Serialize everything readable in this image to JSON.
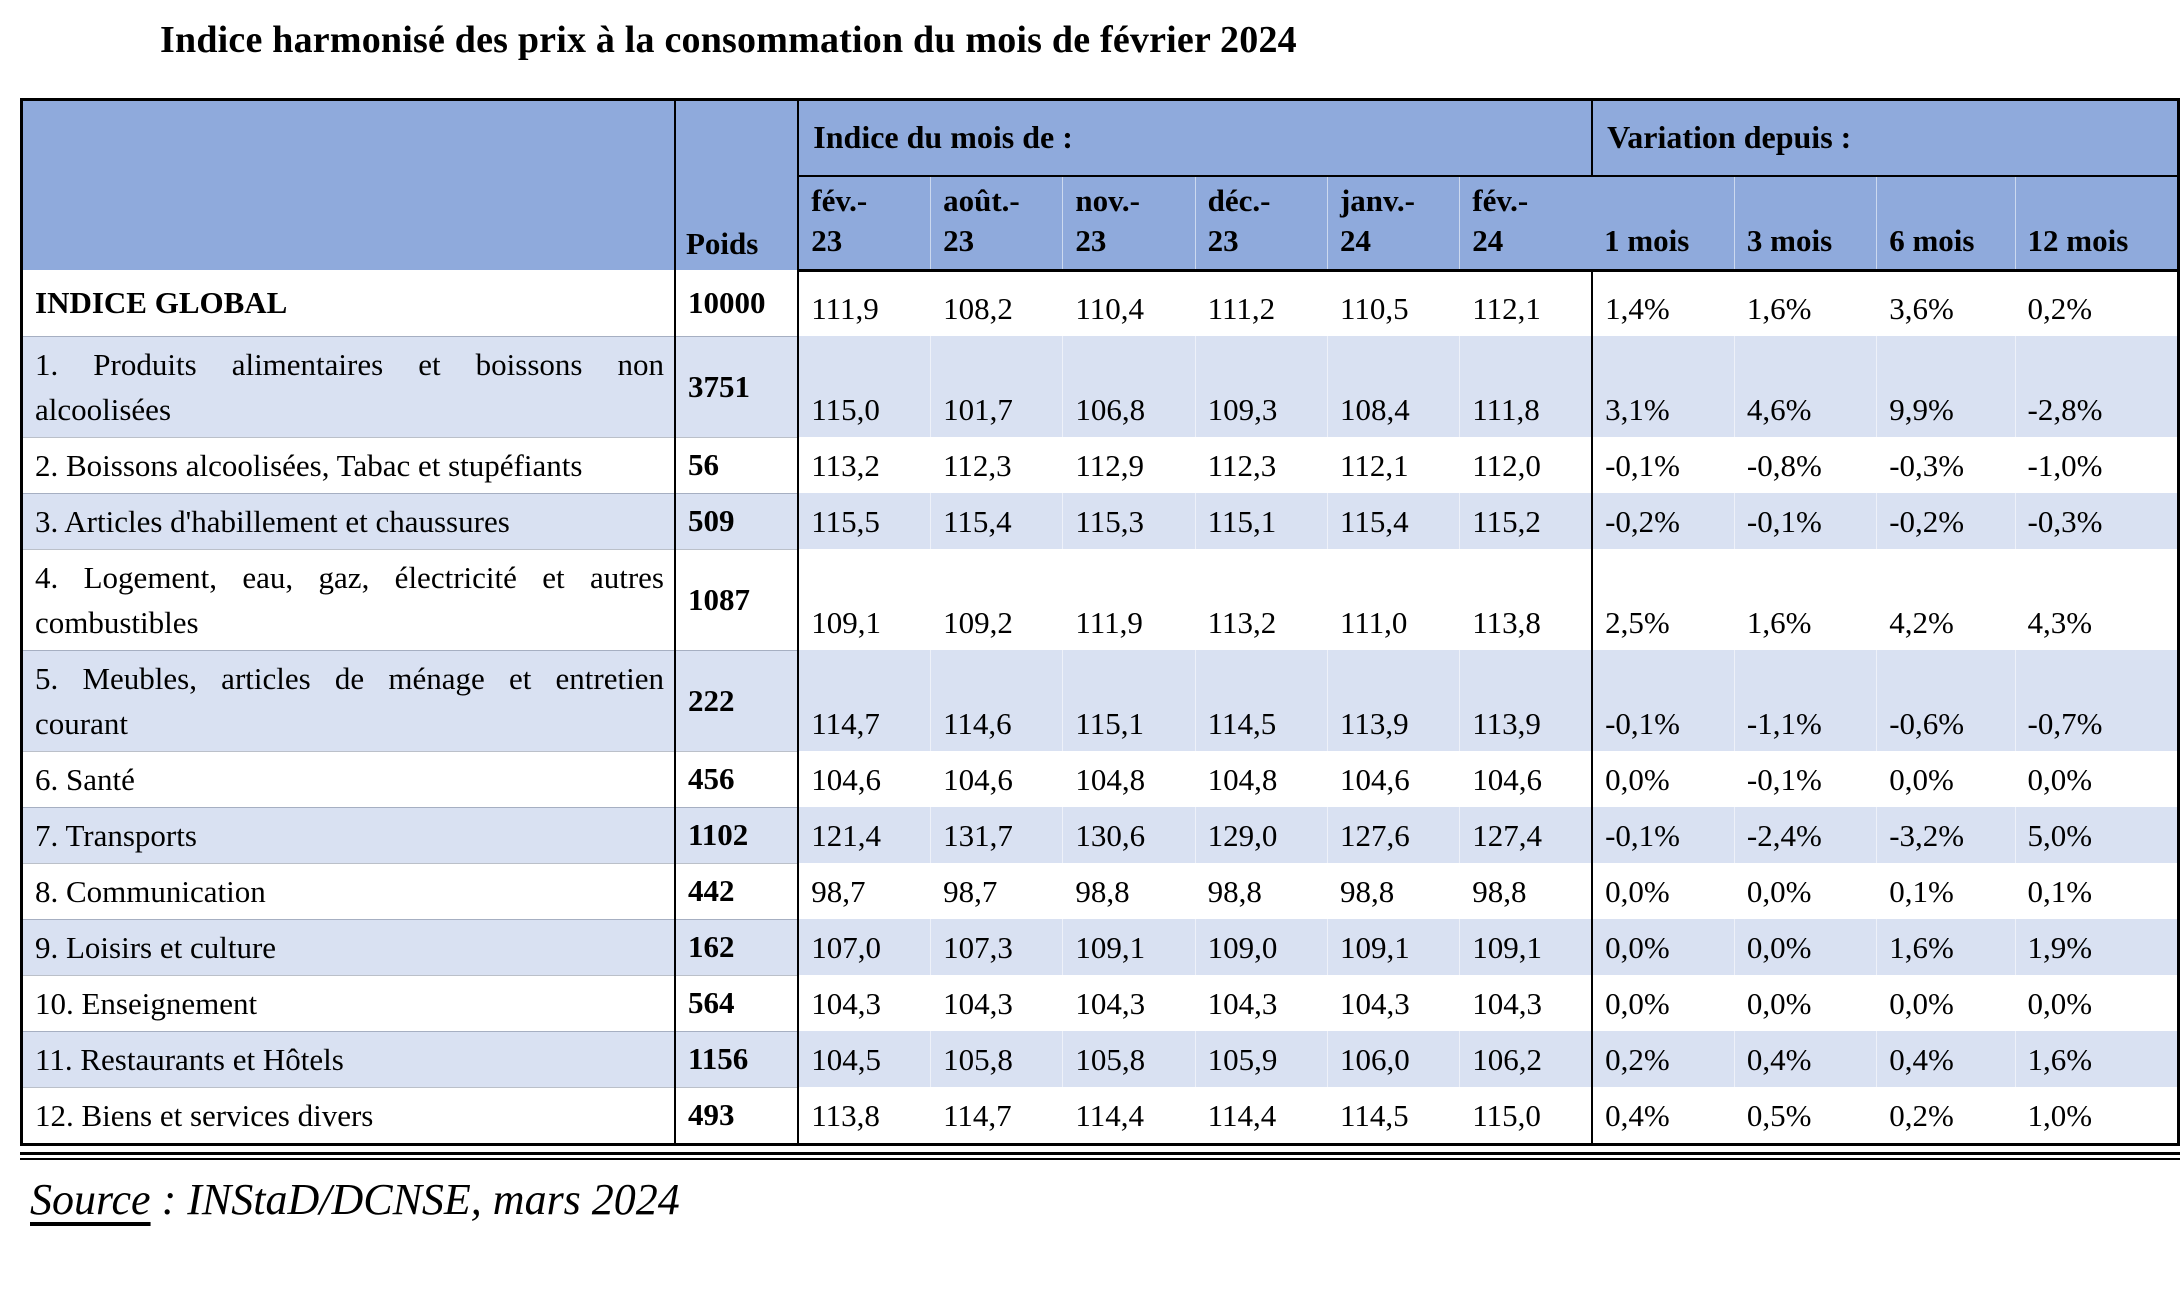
{
  "document": {
    "title": "Indice harmonisé des prix à la consommation du mois de février 2024",
    "source_prefix": "Source",
    "source_text": " : INStaD/DCNSE, mars 2024"
  },
  "colors": {
    "header_blue": "#8FAADC",
    "band_blue": "#D9E1F2",
    "border_black": "#000000"
  },
  "table": {
    "header": {
      "poids_label": "Poids",
      "indice_group_label": "Indice du mois de :",
      "variation_group_label": "Variation depuis :",
      "month_columns": [
        "fév.-\n23",
        "août.-\n23",
        "nov.-\n23",
        "déc.-\n23",
        "janv.-\n24",
        "fév.-\n24"
      ],
      "period_columns": [
        "1 mois",
        "3 mois",
        "6 mois",
        "12 mois"
      ]
    },
    "rows": [
      {
        "category": "INDICE GLOBAL",
        "poids": "10000",
        "indices": [
          "111,9",
          "108,2",
          "110,4",
          "111,2",
          "110,5",
          "112,1"
        ],
        "variations": [
          "1,4%",
          "1,6%",
          "3,6%",
          "0,2%"
        ]
      },
      {
        "category": "1. Produits alimentaires et boissons non alcoolisées",
        "poids": "3751",
        "indices": [
          "115,0",
          "101,7",
          "106,8",
          "109,3",
          "108,4",
          "111,8"
        ],
        "variations": [
          "3,1%",
          "4,6%",
          "9,9%",
          "-2,8%"
        ]
      },
      {
        "category": "2. Boissons alcoolisées, Tabac et stupéfiants",
        "poids": "56",
        "indices": [
          "113,2",
          "112,3",
          "112,9",
          "112,3",
          "112,1",
          "112,0"
        ],
        "variations": [
          "-0,1%",
          "-0,8%",
          "-0,3%",
          "-1,0%"
        ]
      },
      {
        "category": "3. Articles d'habillement et chaussures",
        "poids": "509",
        "indices": [
          "115,5",
          "115,4",
          "115,3",
          "115,1",
          "115,4",
          "115,2"
        ],
        "variations": [
          "-0,2%",
          "-0,1%",
          "-0,2%",
          "-0,3%"
        ]
      },
      {
        "category": "4. Logement, eau, gaz, électricité et autres combustibles",
        "poids": "1087",
        "indices": [
          "109,1",
          "109,2",
          "111,9",
          "113,2",
          "111,0",
          "113,8"
        ],
        "variations": [
          "2,5%",
          "1,6%",
          "4,2%",
          "4,3%"
        ]
      },
      {
        "category": "5. Meubles, articles de ménage et entretien courant",
        "poids": "222",
        "indices": [
          "114,7",
          "114,6",
          "115,1",
          "114,5",
          "113,9",
          "113,9"
        ],
        "variations": [
          "-0,1%",
          "-1,1%",
          "-0,6%",
          "-0,7%"
        ]
      },
      {
        "category": "6. Santé",
        "poids": "456",
        "indices": [
          "104,6",
          "104,6",
          "104,8",
          "104,8",
          "104,6",
          "104,6"
        ],
        "variations": [
          "0,0%",
          "-0,1%",
          "0,0%",
          "0,0%"
        ]
      },
      {
        "category": "7. Transports",
        "poids": "1102",
        "indices": [
          "121,4",
          "131,7",
          "130,6",
          "129,0",
          "127,6",
          "127,4"
        ],
        "variations": [
          "-0,1%",
          "-2,4%",
          "-3,2%",
          "5,0%"
        ]
      },
      {
        "category": "8. Communication",
        "poids": "442",
        "indices": [
          "98,7",
          "98,7",
          "98,8",
          "98,8",
          "98,8",
          "98,8"
        ],
        "variations": [
          "0,0%",
          "0,0%",
          "0,1%",
          "0,1%"
        ]
      },
      {
        "category": "9. Loisirs et culture",
        "poids": "162",
        "indices": [
          "107,0",
          "107,3",
          "109,1",
          "109,0",
          "109,1",
          "109,1"
        ],
        "variations": [
          "0,0%",
          "0,0%",
          "1,6%",
          "1,9%"
        ]
      },
      {
        "category": "10. Enseignement",
        "poids": "564",
        "indices": [
          "104,3",
          "104,3",
          "104,3",
          "104,3",
          "104,3",
          "104,3"
        ],
        "variations": [
          "0,0%",
          "0,0%",
          "0,0%",
          "0,0%"
        ]
      },
      {
        "category": "11. Restaurants et Hôtels",
        "poids": "1156",
        "indices": [
          "104,5",
          "105,8",
          "105,8",
          "105,9",
          "106,0",
          "106,2"
        ],
        "variations": [
          "0,2%",
          "0,4%",
          "0,4%",
          "1,6%"
        ]
      },
      {
        "category": "12. Biens et services divers",
        "poids": "493",
        "indices": [
          "113,8",
          "114,7",
          "114,4",
          "114,4",
          "114,5",
          "115,0"
        ],
        "variations": [
          "0,4%",
          "0,5%",
          "0,2%",
          "1,0%"
        ]
      }
    ]
  }
}
